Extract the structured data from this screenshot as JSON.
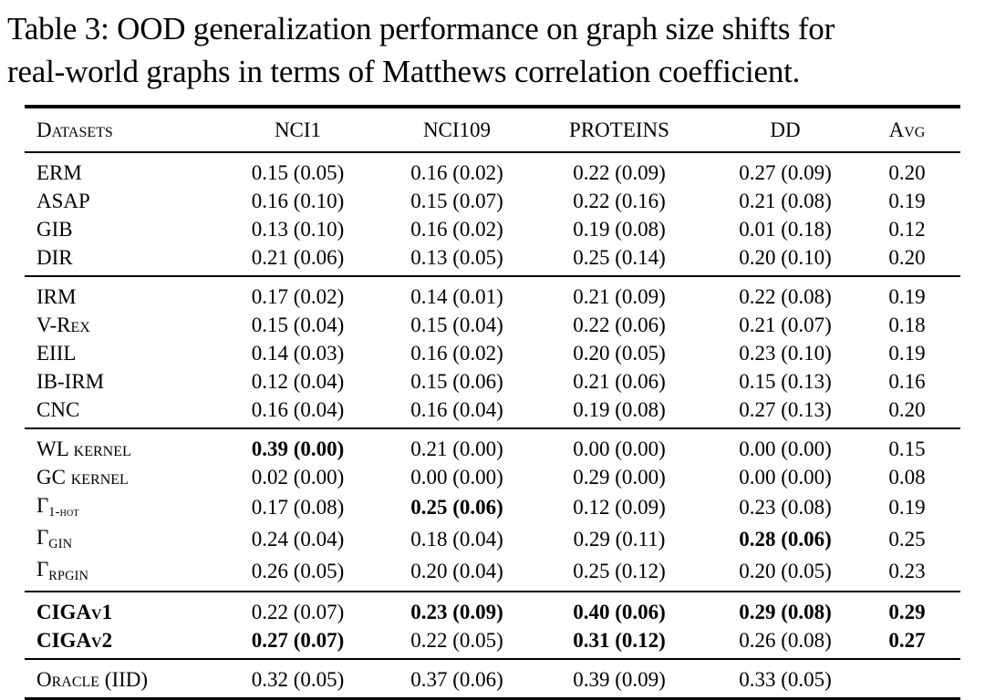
{
  "caption": {
    "line1": "Table 3: OOD generalization performance on graph size shifts for",
    "line2": "real-world graphs in terms of Matthews correlation coefficient."
  },
  "colors": {
    "text": "#000000",
    "background": "#ffffff",
    "rule": "#000000"
  },
  "table": {
    "header": {
      "datasets": "Datasets",
      "cols": [
        "NCI1",
        "NCI109",
        "PROTEINS",
        "DD",
        "Avg"
      ]
    },
    "groups": [
      {
        "name": "erm-baselines",
        "rows": [
          {
            "label": "ERM",
            "sub": "",
            "label_bold": false,
            "cells": [
              {
                "t": "0.15 (0.05)",
                "b": false
              },
              {
                "t": "0.16 (0.02)",
                "b": false
              },
              {
                "t": "0.22 (0.09)",
                "b": false
              },
              {
                "t": "0.27 (0.09)",
                "b": false
              },
              {
                "t": "0.20",
                "b": false
              }
            ]
          },
          {
            "label": "ASAP",
            "sub": "",
            "label_bold": false,
            "cells": [
              {
                "t": "0.16 (0.10)",
                "b": false
              },
              {
                "t": "0.15 (0.07)",
                "b": false
              },
              {
                "t": "0.22 (0.16)",
                "b": false
              },
              {
                "t": "0.21 (0.08)",
                "b": false
              },
              {
                "t": "0.19",
                "b": false
              }
            ]
          },
          {
            "label": "GIB",
            "sub": "",
            "label_bold": false,
            "cells": [
              {
                "t": "0.13 (0.10)",
                "b": false
              },
              {
                "t": "0.16 (0.02)",
                "b": false
              },
              {
                "t": "0.19 (0.08)",
                "b": false
              },
              {
                "t": "0.01 (0.18)",
                "b": false
              },
              {
                "t": "0.12",
                "b": false
              }
            ]
          },
          {
            "label": "DIR",
            "sub": "",
            "label_bold": false,
            "cells": [
              {
                "t": "0.21 (0.06)",
                "b": false
              },
              {
                "t": "0.13 (0.05)",
                "b": false
              },
              {
                "t": "0.25 (0.14)",
                "b": false
              },
              {
                "t": "0.20 (0.10)",
                "b": false
              },
              {
                "t": "0.20",
                "b": false
              }
            ]
          }
        ]
      },
      {
        "name": "invariant-learning-baselines",
        "rows": [
          {
            "label": "IRM",
            "sub": "",
            "label_bold": false,
            "cells": [
              {
                "t": "0.17 (0.02)",
                "b": false
              },
              {
                "t": "0.14 (0.01)",
                "b": false
              },
              {
                "t": "0.21 (0.09)",
                "b": false
              },
              {
                "t": "0.22 (0.08)",
                "b": false
              },
              {
                "t": "0.19",
                "b": false
              }
            ]
          },
          {
            "label": "V-Rex",
            "sub": "",
            "label_bold": false,
            "cells": [
              {
                "t": "0.15 (0.04)",
                "b": false
              },
              {
                "t": "0.15 (0.04)",
                "b": false
              },
              {
                "t": "0.22 (0.06)",
                "b": false
              },
              {
                "t": "0.21 (0.07)",
                "b": false
              },
              {
                "t": "0.18",
                "b": false
              }
            ]
          },
          {
            "label": "EIIL",
            "sub": "",
            "label_bold": false,
            "cells": [
              {
                "t": "0.14 (0.03)",
                "b": false
              },
              {
                "t": "0.16 (0.02)",
                "b": false
              },
              {
                "t": "0.20 (0.05)",
                "b": false
              },
              {
                "t": "0.23 (0.10)",
                "b": false
              },
              {
                "t": "0.19",
                "b": false
              }
            ]
          },
          {
            "label": "IB-IRM",
            "sub": "",
            "label_bold": false,
            "cells": [
              {
                "t": "0.12 (0.04)",
                "b": false
              },
              {
                "t": "0.15 (0.06)",
                "b": false
              },
              {
                "t": "0.21 (0.06)",
                "b": false
              },
              {
                "t": "0.15 (0.13)",
                "b": false
              },
              {
                "t": "0.16",
                "b": false
              }
            ]
          },
          {
            "label": "CNC",
            "sub": "",
            "label_bold": false,
            "cells": [
              {
                "t": "0.16 (0.04)",
                "b": false
              },
              {
                "t": "0.16 (0.04)",
                "b": false
              },
              {
                "t": "0.19 (0.08)",
                "b": false
              },
              {
                "t": "0.27 (0.13)",
                "b": false
              },
              {
                "t": "0.20",
                "b": false
              }
            ]
          }
        ]
      },
      {
        "name": "kernel-and-expressive-gnn-baselines",
        "rows": [
          {
            "label": "WL kernel",
            "sub": "",
            "label_bold": false,
            "cells": [
              {
                "t": "0.39 (0.00)",
                "b": true
              },
              {
                "t": "0.21 (0.00)",
                "b": false
              },
              {
                "t": "0.00 (0.00)",
                "b": false
              },
              {
                "t": "0.00 (0.00)",
                "b": false
              },
              {
                "t": "0.15",
                "b": false
              }
            ]
          },
          {
            "label": "GC kernel",
            "sub": "",
            "label_bold": false,
            "cells": [
              {
                "t": "0.02 (0.00)",
                "b": false
              },
              {
                "t": "0.00 (0.00)",
                "b": false
              },
              {
                "t": "0.29 (0.00)",
                "b": false
              },
              {
                "t": "0.00 (0.00)",
                "b": false
              },
              {
                "t": "0.08",
                "b": false
              }
            ]
          },
          {
            "label": "Γ",
            "sub": "1-hot",
            "label_bold": false,
            "cells": [
              {
                "t": "0.17 (0.08)",
                "b": false
              },
              {
                "t": "0.25 (0.06)",
                "b": true
              },
              {
                "t": "0.12 (0.09)",
                "b": false
              },
              {
                "t": "0.23 (0.08)",
                "b": false
              },
              {
                "t": "0.19",
                "b": false
              }
            ]
          },
          {
            "label": "Γ",
            "sub": "GIN",
            "label_bold": false,
            "cells": [
              {
                "t": "0.24 (0.04)",
                "b": false
              },
              {
                "t": "0.18 (0.04)",
                "b": false
              },
              {
                "t": "0.29 (0.11)",
                "b": false
              },
              {
                "t": "0.28 (0.06)",
                "b": true
              },
              {
                "t": "0.25",
                "b": false
              }
            ]
          },
          {
            "label": "Γ",
            "sub": "RPGIN",
            "label_bold": false,
            "cells": [
              {
                "t": "0.26 (0.05)",
                "b": false
              },
              {
                "t": "0.20 (0.04)",
                "b": false
              },
              {
                "t": "0.25 (0.12)",
                "b": false
              },
              {
                "t": "0.20 (0.05)",
                "b": false
              },
              {
                "t": "0.23",
                "b": false
              }
            ]
          }
        ]
      },
      {
        "name": "ciga-methods",
        "rows": [
          {
            "label": "CIGAv1",
            "sub": "",
            "label_bold": true,
            "cells": [
              {
                "t": "0.22 (0.07)",
                "b": false
              },
              {
                "t": "0.23 (0.09)",
                "b": true
              },
              {
                "t": "0.40 (0.06)",
                "b": true
              },
              {
                "t": "0.29 (0.08)",
                "b": true
              },
              {
                "t": "0.29",
                "b": true
              }
            ]
          },
          {
            "label": "CIGAv2",
            "sub": "",
            "label_bold": true,
            "cells": [
              {
                "t": "0.27 (0.07)",
                "b": true
              },
              {
                "t": "0.22 (0.05)",
                "b": false
              },
              {
                "t": "0.31 (0.12)",
                "b": true
              },
              {
                "t": "0.26 (0.08)",
                "b": false
              },
              {
                "t": "0.27",
                "b": true
              }
            ]
          }
        ]
      },
      {
        "name": "oracle",
        "single": true,
        "rows": [
          {
            "label": "Oracle (IID)",
            "sub": "",
            "label_bold": false,
            "cells": [
              {
                "t": "0.32 (0.05)",
                "b": false
              },
              {
                "t": "0.37 (0.06)",
                "b": false
              },
              {
                "t": "0.39 (0.09)",
                "b": false
              },
              {
                "t": "0.33 (0.05)",
                "b": false
              },
              {
                "t": "",
                "b": false
              }
            ]
          }
        ]
      }
    ]
  }
}
